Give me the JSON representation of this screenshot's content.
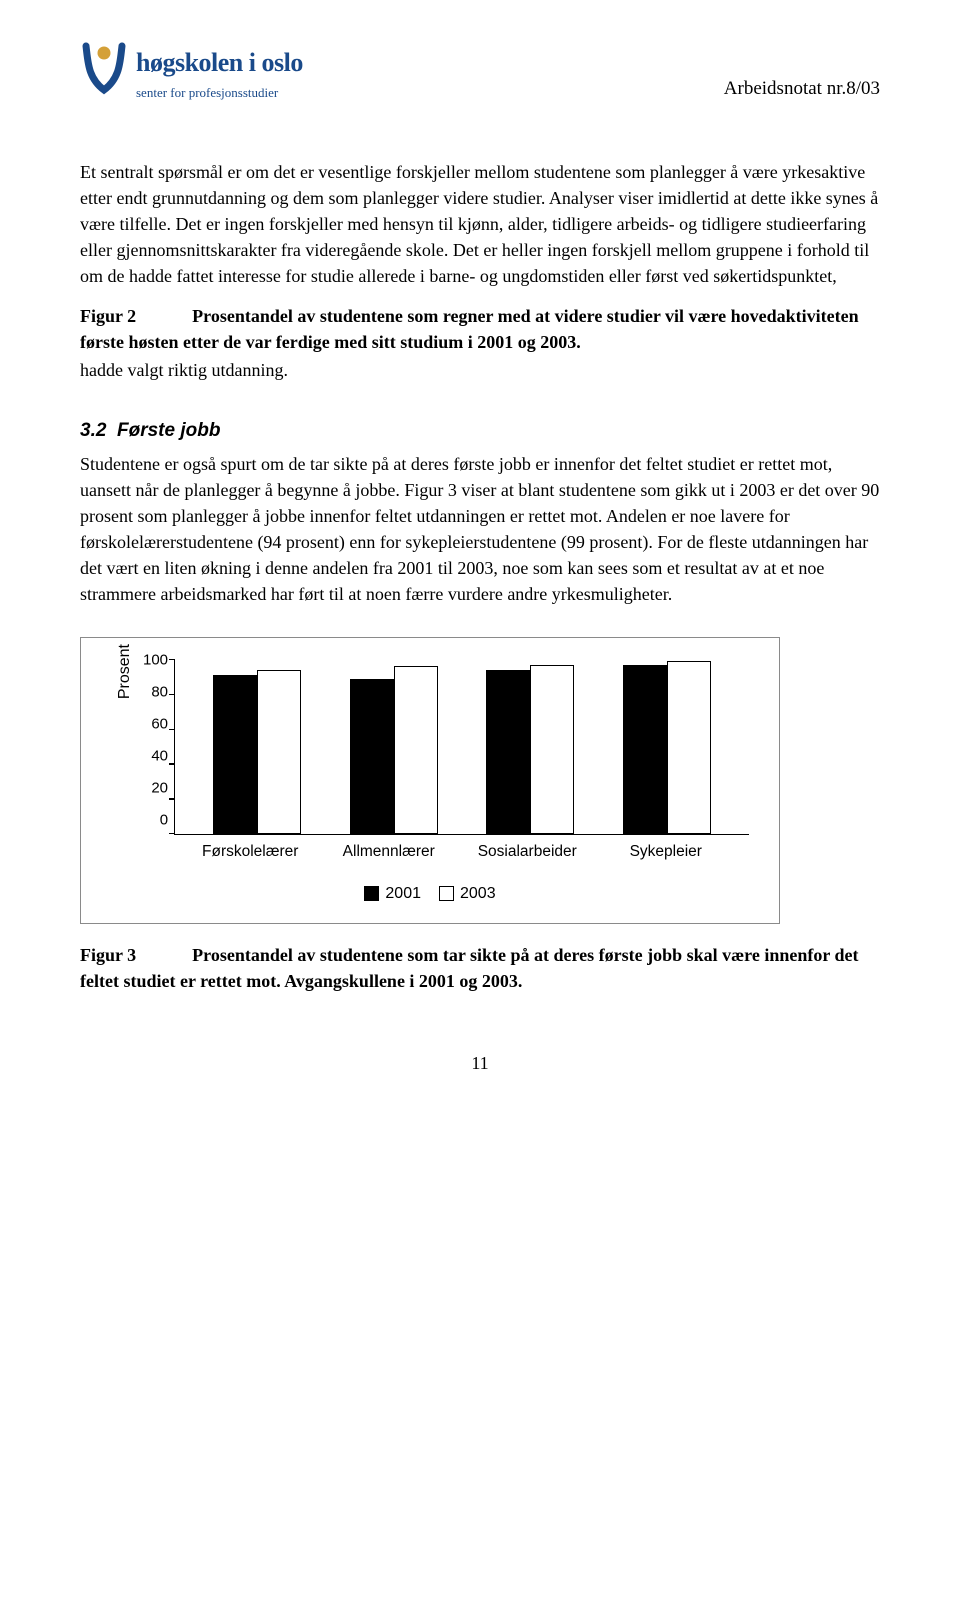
{
  "header": {
    "logo_title": "høgskolen i oslo",
    "logo_subtitle": "senter for profesjonsstudier",
    "doc_id": "Arbeidsnotat nr.8/03"
  },
  "para1": "Et sentralt spørsmål er om det er vesentlige forskjeller mellom studentene som planlegger å være yrkesaktive etter endt grunnutdanning og dem som planlegger videre studier. Analyser viser imidlertid at dette ikke synes å være tilfelle. Det er ingen forskjeller med hensyn til kjønn, alder, tidligere arbeids- og tidligere studieerfaring eller gjennomsnittskarakter fra videregående skole. Det er heller ingen forskjell mellom gruppene i forhold til om de hadde fattet interesse for studie allerede i barne- og ungdomstiden eller først ved søkertidspunktet,",
  "figure2": {
    "label": "Figur 2",
    "text": "Prosentandel av studentene som regner med at videre studier vil være hovedaktiviteten første høsten etter de var ferdige med sitt studium i 2001 og 2003."
  },
  "trail_line": "hadde valgt riktig utdanning.",
  "section": {
    "num": "3.2",
    "title": "Første jobb"
  },
  "para2": "Studentene er også spurt om de tar sikte på at deres første jobb er innenfor det feltet studiet er rettet mot, uansett når de planlegger å begynne å jobbe. Figur 3 viser at blant studentene som gikk ut i 2003 er det over 90 prosent som planlegger å jobbe innenfor feltet utdanningen er rettet mot. Andelen er noe lavere for førskolelærerstudentene (94 prosent) enn for sykepleierstudentene (99 prosent). For de fleste utdanningen har det vært en liten økning i denne andelen fra 2001 til 2003, noe som kan sees som et resultat av at et noe strammere arbeidsmarked har ført til at noen færre vurdere andre yrkesmuligheter.",
  "chart": {
    "ylabel": "Prosent",
    "ymax": 100,
    "yticks": [
      100,
      80,
      60,
      40,
      20,
      0
    ],
    "categories": [
      "Førskolelærer",
      "Allmennlærer",
      "Sosialarbeider",
      "Sykepleier"
    ],
    "series": [
      {
        "name": "2001",
        "fill": "#000000",
        "values": [
          91,
          89,
          94,
          97
        ]
      },
      {
        "name": "2003",
        "fill": "#ffffff",
        "values": [
          94,
          96,
          97,
          99
        ]
      }
    ]
  },
  "figure3": {
    "label": "Figur 3",
    "text": "Prosentandel av studentene som tar sikte på at deres første jobb skal være innenfor det feltet studiet er rettet mot. Avgangskullene i 2001 og 2003."
  },
  "page_number": "11"
}
